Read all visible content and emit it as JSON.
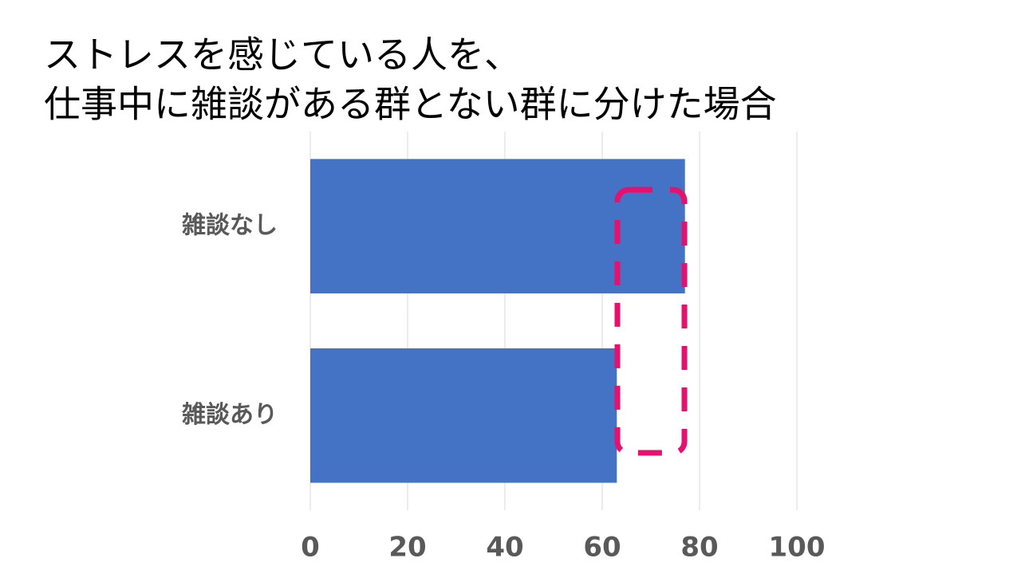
{
  "chart_data": {
    "type": "bar",
    "orientation": "horizontal",
    "title": [
      "ストレスを感じている人を、",
      "仕事中に雑談がある群とない群に分けた場合"
    ],
    "categories": [
      "雑談なし",
      "雑談あり"
    ],
    "values": [
      77,
      63
    ],
    "color": "#4472c4",
    "xlim": [
      0,
      100
    ],
    "xticks": [
      0,
      20,
      40,
      60,
      80,
      100
    ],
    "grid": true
  }
}
